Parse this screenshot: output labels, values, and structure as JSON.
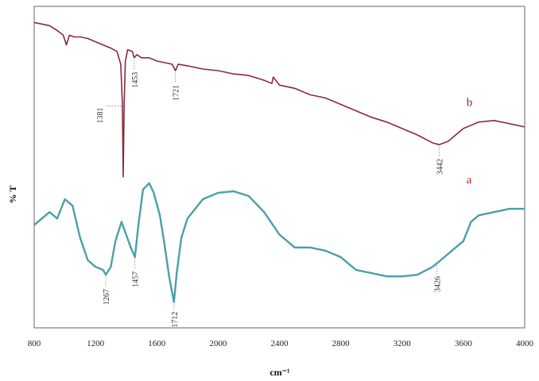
{
  "chart_data": {
    "type": "line",
    "title": "",
    "xlabel": "cm⁻¹",
    "ylabel": "% T",
    "xlim": [
      800,
      4000
    ],
    "x_ticks": [
      800,
      1200,
      1600,
      2000,
      2400,
      2800,
      3200,
      3600,
      4000
    ],
    "x_tick_labels": [
      "800",
      "1200",
      "1600",
      "2000",
      "2400",
      "2800",
      "3200",
      "3600",
      "4000"
    ],
    "ylim": [
      0,
      100
    ],
    "y_ticks_shown": false,
    "grid": false,
    "series": [
      {
        "name": "b",
        "color": "#8a2a3a",
        "x": [
          800,
          850,
          900,
          950,
          990,
          1010,
          1030,
          1060,
          1100,
          1150,
          1200,
          1250,
          1300,
          1340,
          1365,
          1375,
          1381,
          1387,
          1395,
          1410,
          1440,
          1453,
          1470,
          1500,
          1550,
          1600,
          1650,
          1700,
          1721,
          1740,
          1800,
          1900,
          2000,
          2100,
          2200,
          2300,
          2350,
          2360,
          2400,
          2500,
          2600,
          2700,
          2800,
          2900,
          3000,
          3100,
          3200,
          3300,
          3400,
          3442,
          3500,
          3550,
          3600,
          3650,
          3700,
          3800,
          3900,
          4000
        ],
        "y": [
          95,
          94.5,
          94,
          92.5,
          91,
          88,
          91,
          90.5,
          90.5,
          90,
          89,
          88,
          87,
          86,
          82,
          70,
          47,
          70,
          83,
          86.5,
          86,
          84,
          85,
          84,
          84,
          83,
          82.5,
          82,
          80,
          82,
          81.5,
          80.5,
          80,
          79,
          78.5,
          77,
          76,
          78,
          75.5,
          74.5,
          72.5,
          71.5,
          69.5,
          67.5,
          65.5,
          64,
          62,
          60,
          57.5,
          57,
          58,
          60,
          62,
          63,
          64,
          64.5,
          63.5,
          62.5
        ]
      },
      {
        "name": "a",
        "color": "#4aa0a8",
        "x": [
          800,
          850,
          900,
          950,
          1000,
          1050,
          1100,
          1150,
          1200,
          1250,
          1267,
          1300,
          1330,
          1370,
          1400,
          1430,
          1457,
          1480,
          1510,
          1550,
          1580,
          1620,
          1650,
          1680,
          1700,
          1712,
          1730,
          1760,
          1800,
          1900,
          2000,
          2100,
          2200,
          2300,
          2400,
          2500,
          2600,
          2700,
          2800,
          2900,
          3000,
          3100,
          3200,
          3300,
          3400,
          3426,
          3500,
          3550,
          3600,
          3650,
          3700,
          3800,
          3900,
          4000
        ],
        "y": [
          32,
          34,
          36,
          34,
          40,
          38,
          28,
          21,
          19,
          18,
          16.5,
          19,
          27,
          33,
          29,
          25,
          22,
          32,
          43,
          45,
          42,
          35,
          26,
          16,
          11,
          8,
          17,
          28,
          34,
          40,
          42,
          42.5,
          41,
          36,
          29,
          25,
          25,
          24,
          22,
          18,
          17,
          16,
          16,
          16.5,
          19,
          20,
          23,
          25,
          27,
          33,
          35,
          36,
          37,
          37
        ]
      }
    ],
    "peak_labels": [
      {
        "series": "b",
        "x": 1381,
        "text": "1381"
      },
      {
        "series": "b",
        "x": 1453,
        "text": "1453"
      },
      {
        "series": "b",
        "x": 1721,
        "text": "1721"
      },
      {
        "series": "b",
        "x": 3442,
        "text": "3442"
      },
      {
        "series": "a",
        "x": 1267,
        "text": "1267"
      },
      {
        "series": "a",
        "x": 1457,
        "text": "1457"
      },
      {
        "series": "a",
        "x": 1712,
        "text": "1712"
      },
      {
        "series": "a",
        "x": 3426,
        "text": "3426"
      }
    ],
    "curve_labels": [
      {
        "series": "b",
        "text": "b",
        "color": "#8a2a3a"
      },
      {
        "series": "a",
        "text": "a",
        "color": "#b8302a"
      }
    ]
  }
}
